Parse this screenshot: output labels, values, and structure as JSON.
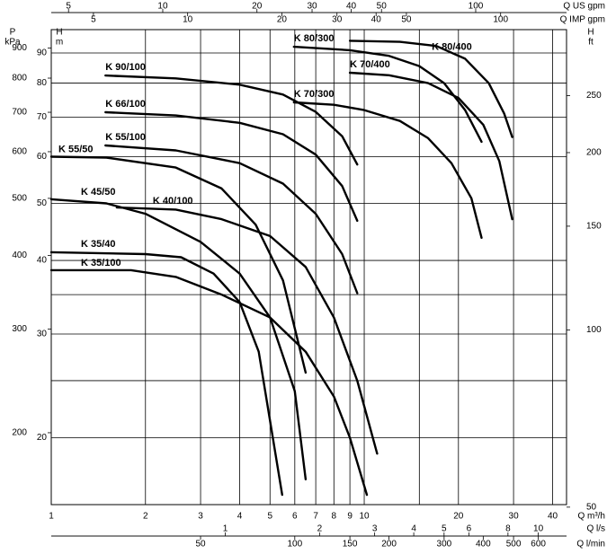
{
  "chart_data": {
    "type": "line",
    "log_x": true,
    "log_y": true,
    "grid": true,
    "xlabel": [
      "Q m³/h"
    ],
    "ylabel": [
      "H",
      "m"
    ],
    "xlim": [
      1,
      44.3
    ],
    "xticks": [
      1,
      2,
      3,
      4,
      5,
      6,
      7,
      8,
      9,
      10,
      20,
      30,
      40
    ],
    "minor_xticks": [
      15
    ],
    "ylim": [
      15.4,
      98.6
    ],
    "yticks": [
      20,
      30,
      40,
      50,
      60,
      70,
      80,
      90
    ],
    "minor_yticks": [
      25,
      35
    ],
    "secondary_axes": [
      {
        "side": "top",
        "title": [
          "Q US gpm"
        ],
        "lim": [
          4.403,
          195.1
        ],
        "ticks": [
          5,
          10,
          20,
          30,
          40,
          50,
          100
        ]
      },
      {
        "side": "top",
        "title": [
          "Q IMP gpm"
        ],
        "lim": [
          3.666,
          162.4
        ],
        "ticks": [
          5,
          10,
          20,
          30,
          40,
          50,
          100
        ]
      },
      {
        "side": "bottom",
        "title": [
          "Q l/s"
        ],
        "lim": [
          0.2778,
          12.31
        ],
        "ticks": [
          1,
          2,
          3,
          4,
          5,
          6,
          8,
          10
        ]
      },
      {
        "side": "bottom",
        "title": [
          "Q l/min"
        ],
        "lim": [
          16.67,
          738.3
        ],
        "ticks": [
          50,
          100,
          150,
          200,
          300,
          400,
          500,
          600
        ]
      },
      {
        "side": "left",
        "title": [
          "P",
          "kPa"
        ],
        "lim": [
          151,
          967
        ],
        "ticks": [
          200,
          300,
          400,
          500,
          600,
          700,
          800,
          900
        ]
      },
      {
        "side": "right",
        "title": [
          "H",
          "ft"
        ],
        "lim": [
          50.5,
          323.5
        ],
        "ticks": [
          50,
          100,
          150,
          200,
          250
        ]
      }
    ],
    "series": [
      {
        "name": "K 35/100",
        "color": "#000000",
        "x": [
          1,
          1.8,
          2.5,
          3.5,
          5,
          6.5,
          8,
          9,
          10.2
        ],
        "values": [
          38.5,
          38.5,
          37.5,
          35,
          32,
          28,
          23.5,
          20,
          16
        ]
      },
      {
        "name": "K 35/40",
        "color": "#000000",
        "x": [
          1,
          2,
          2.6,
          3.3,
          4,
          4.6,
          5.47
        ],
        "values": [
          41.3,
          41,
          40.5,
          38,
          34,
          28,
          16
        ]
      },
      {
        "name": "K 45/50",
        "color": "#000000",
        "x": [
          1,
          1.5,
          2,
          3,
          4,
          5,
          6,
          6.5
        ],
        "values": [
          50.8,
          50,
          48,
          43,
          38,
          32,
          24,
          17
        ]
      },
      {
        "name": "K 40/100",
        "color": "#000000",
        "x": [
          1.62,
          2.5,
          3.5,
          5,
          6.5,
          8,
          9.5,
          11
        ],
        "values": [
          49.2,
          48.8,
          47,
          44,
          39,
          32,
          25,
          18.8
        ]
      },
      {
        "name": "K 55/50",
        "color": "#000000",
        "x": [
          1,
          1.5,
          2.5,
          3.5,
          4.5,
          5.5,
          6.5
        ],
        "values": [
          60,
          59.8,
          57.5,
          53,
          46,
          37,
          25.8
        ]
      },
      {
        "name": "K 55/100",
        "color": "#000000",
        "x": [
          1.49,
          2.5,
          4,
          5.5,
          7,
          8.5,
          9.5
        ],
        "values": [
          62.7,
          61.5,
          58.5,
          54,
          48,
          41,
          35.2
        ]
      },
      {
        "name": "K 66/100",
        "color": "#000000",
        "x": [
          1.49,
          2.5,
          4,
          5.5,
          7,
          8.5,
          9.5
        ],
        "values": [
          71.4,
          70.5,
          68.5,
          65.5,
          60.5,
          53.5,
          46.7
        ]
      },
      {
        "name": "K 90/100",
        "color": "#000000",
        "x": [
          1.49,
          2.5,
          4,
          5.5,
          7,
          8.5,
          9.5
        ],
        "values": [
          82.4,
          81.5,
          79.5,
          76.5,
          71.5,
          65,
          58.2
        ]
      },
      {
        "name": "K 70/300",
        "color": "#000000",
        "x": [
          5.96,
          8,
          10,
          13,
          16,
          19,
          22,
          23.7
        ],
        "values": [
          74.2,
          73.5,
          72,
          69,
          64.5,
          58.5,
          51,
          43.7
        ]
      },
      {
        "name": "K 80/300",
        "color": "#000000",
        "x": [
          5.96,
          9,
          12,
          15,
          18,
          21,
          23.7
        ],
        "values": [
          92.2,
          91,
          89,
          85.5,
          80,
          72,
          63.6
        ]
      },
      {
        "name": "K 70/400",
        "color": "#000000",
        "x": [
          9,
          12,
          16,
          20,
          24,
          27,
          29.7
        ],
        "values": [
          83.3,
          82.5,
          80,
          75.5,
          68,
          59,
          47
        ]
      },
      {
        "name": "K 80/400",
        "color": "#000000",
        "x": [
          9,
          13,
          17,
          21,
          25,
          28,
          29.7
        ],
        "values": [
          94.4,
          94,
          92.5,
          88,
          80,
          71,
          64.8
        ]
      }
    ]
  }
}
